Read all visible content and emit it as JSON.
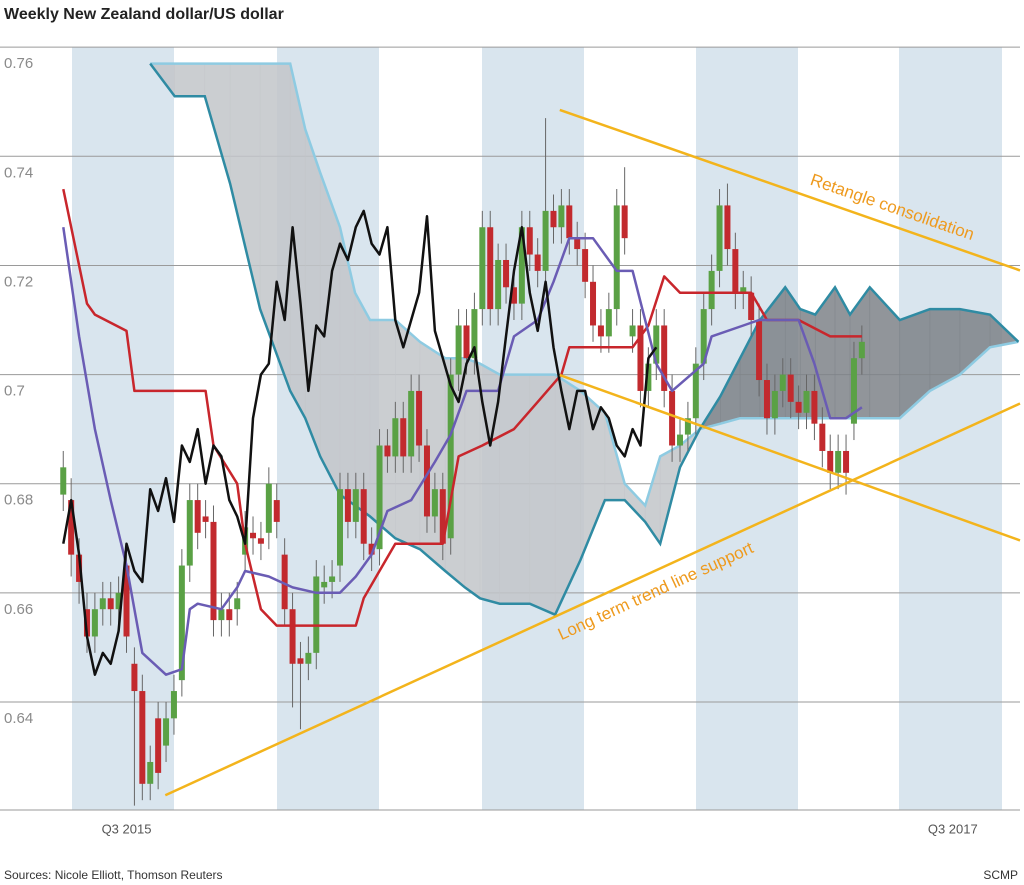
{
  "chart_data": {
    "type": "candlestick",
    "title": "Weekly New Zealand dollar/US dollar",
    "source": "Sources: Nicole Elliott, Thomson Reuters",
    "credit": "SCMP",
    "xlim": [
      0,
      129
    ],
    "ylim": [
      0.6202,
      0.7604
    ],
    "yticks": [
      0.64,
      0.66,
      0.68,
      0.7,
      0.72,
      0.74,
      0.76
    ],
    "xticks": [
      {
        "value": 16,
        "label": "Q3 2015"
      },
      {
        "value": 120.5,
        "label": "Q3 2017"
      }
    ],
    "grid": true,
    "up_color": "#5aa145",
    "down_color": "#c22a2e",
    "x": [
      8,
      9,
      10,
      11,
      12,
      13,
      14,
      15,
      16,
      17,
      18,
      19,
      20,
      21,
      22,
      23,
      24,
      25,
      26,
      27,
      28,
      29,
      30,
      31,
      32,
      33,
      34,
      35,
      36,
      37,
      38,
      39,
      40,
      41,
      42,
      43,
      44,
      45,
      46,
      47,
      48,
      49,
      50,
      51,
      52,
      53,
      54,
      55,
      56,
      57,
      58,
      59,
      60,
      61,
      62,
      63,
      64,
      65,
      66,
      67,
      68,
      69,
      70,
      71,
      72,
      73,
      74,
      75,
      76,
      77,
      78,
      79,
      80,
      81,
      82,
      83,
      84,
      85,
      86,
      87,
      88,
      89,
      90,
      91,
      92,
      93,
      94,
      95,
      96,
      97,
      98,
      99,
      100,
      101,
      102,
      103,
      104,
      105,
      106,
      107,
      108,
      109
    ],
    "open": [
      0.678,
      0.677,
      0.667,
      0.657,
      0.652,
      0.657,
      0.659,
      0.657,
      0.665,
      0.647,
      0.642,
      0.625,
      0.637,
      0.632,
      0.637,
      0.644,
      0.665,
      0.677,
      0.674,
      0.673,
      0.655,
      0.657,
      0.657,
      0.667,
      0.671,
      0.67,
      0.671,
      0.677,
      0.667,
      0.657,
      0.648,
      0.647,
      0.649,
      0.661,
      0.662,
      0.665,
      0.679,
      0.673,
      0.679,
      0.669,
      0.668,
      0.687,
      0.685,
      0.692,
      0.685,
      0.697,
      0.687,
      0.674,
      0.679,
      0.67,
      0.7,
      0.709,
      0.703,
      0.712,
      0.727,
      0.712,
      0.721,
      0.716,
      0.713,
      0.727,
      0.722,
      0.719,
      0.73,
      0.727,
      0.731,
      0.725,
      0.723,
      0.717,
      0.709,
      0.707,
      0.712,
      0.731,
      0.707,
      0.709,
      0.697,
      0.702,
      0.709,
      0.697,
      0.687,
      0.689,
      0.692,
      0.702,
      0.712,
      0.719,
      0.731,
      0.723,
      0.715,
      0.715,
      0.71,
      0.699,
      0.692,
      0.697,
      0.7,
      0.695,
      0.693,
      0.697,
      0.691,
      0.686,
      0.682,
      0.686,
      0.691,
      0.703
    ],
    "high": [
      0.686,
      0.681,
      0.67,
      0.66,
      0.66,
      0.662,
      0.662,
      0.663,
      0.668,
      0.65,
      0.645,
      0.632,
      0.64,
      0.64,
      0.645,
      0.668,
      0.68,
      0.68,
      0.677,
      0.676,
      0.66,
      0.66,
      0.662,
      0.675,
      0.674,
      0.673,
      0.683,
      0.68,
      0.67,
      0.66,
      0.651,
      0.652,
      0.666,
      0.665,
      0.666,
      0.682,
      0.682,
      0.682,
      0.682,
      0.672,
      0.69,
      0.69,
      0.695,
      0.695,
      0.7,
      0.7,
      0.69,
      0.682,
      0.682,
      0.703,
      0.712,
      0.712,
      0.715,
      0.73,
      0.73,
      0.724,
      0.724,
      0.719,
      0.73,
      0.73,
      0.725,
      0.747,
      0.733,
      0.734,
      0.734,
      0.728,
      0.726,
      0.72,
      0.712,
      0.715,
      0.734,
      0.738,
      0.712,
      0.712,
      0.705,
      0.712,
      0.712,
      0.7,
      0.692,
      0.695,
      0.705,
      0.715,
      0.722,
      0.734,
      0.735,
      0.726,
      0.719,
      0.718,
      0.713,
      0.702,
      0.7,
      0.703,
      0.703,
      0.698,
      0.7,
      0.7,
      0.694,
      0.689,
      0.689,
      0.689,
      0.706,
      0.709
    ],
    "low": [
      0.675,
      0.663,
      0.658,
      0.649,
      0.649,
      0.654,
      0.654,
      0.654,
      0.649,
      0.621,
      0.622,
      0.622,
      0.624,
      0.629,
      0.634,
      0.641,
      0.662,
      0.668,
      0.67,
      0.652,
      0.652,
      0.652,
      0.654,
      0.664,
      0.667,
      0.666,
      0.668,
      0.67,
      0.654,
      0.639,
      0.635,
      0.644,
      0.646,
      0.658,
      0.659,
      0.662,
      0.67,
      0.67,
      0.666,
      0.664,
      0.665,
      0.682,
      0.682,
      0.682,
      0.682,
      0.684,
      0.671,
      0.671,
      0.666,
      0.667,
      0.697,
      0.7,
      0.7,
      0.709,
      0.709,
      0.709,
      0.713,
      0.71,
      0.71,
      0.719,
      0.716,
      0.716,
      0.724,
      0.724,
      0.722,
      0.72,
      0.714,
      0.706,
      0.704,
      0.704,
      0.709,
      0.722,
      0.704,
      0.694,
      0.694,
      0.699,
      0.694,
      0.684,
      0.684,
      0.686,
      0.689,
      0.699,
      0.709,
      0.716,
      0.72,
      0.712,
      0.712,
      0.707,
      0.696,
      0.689,
      0.689,
      0.694,
      0.692,
      0.69,
      0.69,
      0.688,
      0.683,
      0.679,
      0.679,
      0.678,
      0.688,
      0.7
    ],
    "close": [
      0.683,
      0.667,
      0.662,
      0.652,
      0.657,
      0.659,
      0.657,
      0.66,
      0.652,
      0.642,
      0.625,
      0.629,
      0.627,
      0.637,
      0.642,
      0.665,
      0.677,
      0.671,
      0.673,
      0.655,
      0.657,
      0.655,
      0.659,
      0.672,
      0.67,
      0.669,
      0.68,
      0.673,
      0.657,
      0.647,
      0.647,
      0.649,
      0.663,
      0.662,
      0.663,
      0.679,
      0.673,
      0.679,
      0.669,
      0.667,
      0.687,
      0.685,
      0.692,
      0.685,
      0.697,
      0.687,
      0.674,
      0.679,
      0.669,
      0.7,
      0.709,
      0.703,
      0.712,
      0.727,
      0.712,
      0.721,
      0.716,
      0.713,
      0.727,
      0.722,
      0.719,
      0.73,
      0.727,
      0.731,
      0.725,
      0.723,
      0.717,
      0.709,
      0.707,
      0.712,
      0.731,
      0.725,
      0.709,
      0.697,
      0.702,
      0.709,
      0.697,
      0.687,
      0.689,
      0.692,
      0.702,
      0.712,
      0.719,
      0.731,
      0.723,
      0.715,
      0.716,
      0.71,
      0.699,
      0.692,
      0.697,
      0.7,
      0.695,
      0.693,
      0.697,
      0.691,
      0.686,
      0.682,
      0.686,
      0.682,
      0.703,
      0.706
    ],
    "cloud": {
      "x": [
        19,
        22.1,
        25.9,
        29.1,
        32.9,
        36.7,
        38.6,
        40.5,
        43,
        44.9,
        46.8,
        50,
        53.1,
        56.3,
        58.8,
        60.7,
        63.2,
        67,
        70.2,
        73.4,
        76.5,
        79,
        81.6,
        83.5,
        86,
        88.5,
        91.1,
        93.6,
        96.1,
        99.3,
        101.2,
        103.1,
        105.6,
        107.5,
        110,
        113.8,
        117.6,
        121.4,
        125.2,
        128.8
      ],
      "span_a": [
        0.757,
        0.751,
        0.751,
        0.735,
        0.712,
        0.697,
        0.692,
        0.685,
        0.678,
        0.676,
        0.674,
        0.67,
        0.668,
        0.664,
        0.661,
        0.659,
        0.658,
        0.658,
        0.656,
        0.666,
        0.677,
        0.677,
        0.673,
        0.669,
        0.683,
        0.69,
        0.696,
        0.703,
        0.71,
        0.716,
        0.712,
        0.711,
        0.716,
        0.711,
        0.716,
        0.71,
        0.712,
        0.712,
        0.711,
        0.706
      ],
      "span_b": [
        0.757,
        0.757,
        0.757,
        0.757,
        0.757,
        0.757,
        0.745,
        0.737,
        0.727,
        0.715,
        0.71,
        0.71,
        0.706,
        0.703,
        0.703,
        0.702,
        0.7,
        0.7,
        0.7,
        0.697,
        0.693,
        0.68,
        0.676,
        0.685,
        0.687,
        0.69,
        0.691,
        0.692,
        0.692,
        0.692,
        0.692,
        0.692,
        0.692,
        0.692,
        0.692,
        0.692,
        0.697,
        0.7,
        0.705,
        0.706
      ],
      "span_a_color": "#2f8ba3",
      "span_b_color": "#8ecbe2",
      "fill_a_above": "#7e8389",
      "fill_b_above": "#c3c6ca"
    },
    "lines": [
      {
        "color": "#c8262c",
        "x": [
          8,
          9,
          11,
          12,
          16,
          17,
          26,
          27,
          30,
          31,
          33,
          35,
          45,
          46,
          50,
          56,
          58,
          61,
          65,
          68,
          71,
          72,
          76,
          80,
          82,
          84,
          86,
          95,
          97,
          101,
          105,
          109
        ],
        "values": [
          0.734,
          0.727,
          0.713,
          0.711,
          0.708,
          0.697,
          0.697,
          0.687,
          0.68,
          0.669,
          0.657,
          0.654,
          0.654,
          0.659,
          0.669,
          0.669,
          0.685,
          0.687,
          0.69,
          0.695,
          0.7,
          0.705,
          0.705,
          0.705,
          0.709,
          0.718,
          0.715,
          0.715,
          0.71,
          0.71,
          0.707,
          0.707
        ]
      },
      {
        "color": "#6a5cb4",
        "x": [
          8,
          9,
          10,
          12,
          14,
          16,
          18,
          21,
          23,
          24,
          25,
          28,
          30,
          31,
          34,
          37,
          40,
          43,
          45,
          47,
          49,
          52,
          55,
          57,
          59,
          63,
          65,
          68,
          70,
          72,
          75,
          78,
          80,
          83,
          85,
          89,
          90,
          94,
          96,
          101,
          103,
          105,
          107,
          109
        ],
        "values": [
          0.727,
          0.717,
          0.707,
          0.69,
          0.677,
          0.665,
          0.649,
          0.645,
          0.646,
          0.657,
          0.658,
          0.657,
          0.661,
          0.664,
          0.663,
          0.661,
          0.66,
          0.66,
          0.663,
          0.667,
          0.675,
          0.677,
          0.684,
          0.689,
          0.697,
          0.697,
          0.707,
          0.71,
          0.717,
          0.725,
          0.725,
          0.719,
          0.719,
          0.702,
          0.697,
          0.702,
          0.707,
          0.709,
          0.71,
          0.71,
          0.702,
          0.692,
          0.692,
          0.694
        ]
      },
      {
        "color": "#111111",
        "x": [
          8,
          9,
          10,
          11,
          12,
          13,
          14,
          15,
          16,
          17,
          18,
          19,
          20,
          21,
          22,
          23,
          24,
          25,
          26,
          27,
          28,
          29,
          30,
          31,
          32,
          33,
          34,
          35,
          36,
          37,
          38,
          39,
          40,
          41,
          42,
          43,
          44,
          45,
          46,
          47,
          48,
          49,
          50,
          51,
          52,
          53,
          54,
          55,
          56,
          57,
          58,
          59,
          60,
          61,
          62,
          63,
          64,
          65,
          66,
          67,
          68,
          69,
          70,
          71,
          72,
          73,
          74,
          75,
          76,
          77,
          78,
          79,
          80,
          81,
          82,
          83
        ],
        "values": [
          0.669,
          0.677,
          0.667,
          0.652,
          0.645,
          0.649,
          0.647,
          0.653,
          0.669,
          0.664,
          0.662,
          0.679,
          0.675,
          0.681,
          0.673,
          0.687,
          0.684,
          0.69,
          0.68,
          0.687,
          0.685,
          0.677,
          0.674,
          0.669,
          0.692,
          0.7,
          0.702,
          0.717,
          0.71,
          0.727,
          0.713,
          0.697,
          0.709,
          0.707,
          0.719,
          0.724,
          0.721,
          0.727,
          0.73,
          0.724,
          0.722,
          0.727,
          0.71,
          0.705,
          0.71,
          0.715,
          0.729,
          0.708,
          0.703,
          0.698,
          0.695,
          0.702,
          0.705,
          0.695,
          0.687,
          0.695,
          0.707,
          0.719,
          0.727,
          0.715,
          0.708,
          0.717,
          0.705,
          0.697,
          0.69,
          0.697,
          0.697,
          0.69,
          0.694,
          0.692,
          0.687,
          0.685,
          0.69,
          0.687,
          0.703,
          0.705
        ]
      }
    ],
    "trend_lines": [
      {
        "color": "#f3b41c",
        "x": [
          70.8,
          129
        ],
        "values": [
          0.7485,
          0.7191
        ]
      },
      {
        "color": "#f3b41c",
        "x": [
          70.8,
          129
        ],
        "values": [
          0.6999,
          0.6696
        ]
      },
      {
        "color": "#f3b41c",
        "x": [
          20.9,
          129
        ],
        "values": [
          0.6229,
          0.6947
        ]
      }
    ],
    "annotations": [
      "Retangle consolidation",
      "Long term trend line support"
    ],
    "annotation_color": "#ee9a1e"
  }
}
